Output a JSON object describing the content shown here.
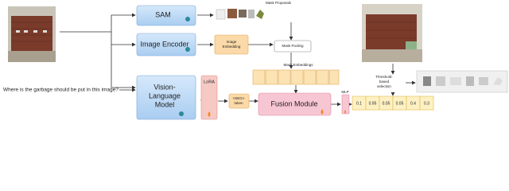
{
  "question": "Where is the garbage should be put in this image?",
  "modules": {
    "sam": "SAM",
    "image_encoder": "Image Encoder",
    "vlm": [
      "Vision-",
      "Language",
      "Model"
    ],
    "lora": "LoRA",
    "seg_token": [
      "<SEG>",
      "token"
    ],
    "image_embedding": [
      "Image",
      "Embedding"
    ],
    "mask_pooling": "Mask Pooling",
    "fusion": "Fusion Module",
    "mlp": "MLP"
  },
  "labels": {
    "mask_proposals": "Mask Proposals",
    "mask_embeddings": "Mask Embeddings",
    "threshold": [
      "Threshold-",
      "based",
      "selection"
    ]
  },
  "scores": [
    0.1,
    0.95,
    0.05,
    0.05,
    0.4,
    0.3
  ]
}
